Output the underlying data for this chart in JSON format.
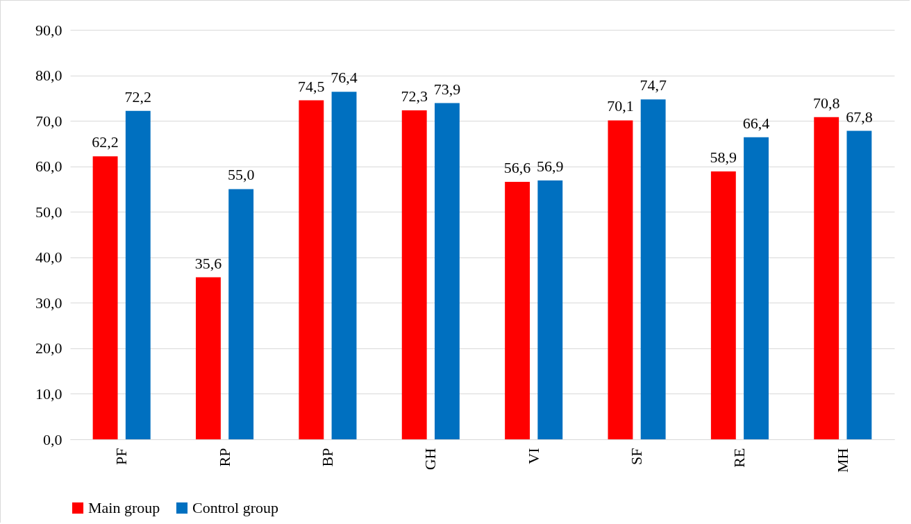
{
  "chart_data": {
    "type": "bar",
    "categories": [
      "PF",
      "RP",
      "BP",
      "GH",
      "VI",
      "SF",
      "RE",
      "MH"
    ],
    "series": [
      {
        "name": "Main group",
        "color": "#ff0000",
        "values": [
          62.2,
          35.6,
          74.5,
          72.3,
          56.6,
          70.1,
          58.9,
          70.8
        ],
        "value_labels": [
          "62,2",
          "35,6",
          "74,5",
          "72,3",
          "56,6",
          "70,1",
          "58,9",
          "70,8"
        ]
      },
      {
        "name": "Control group",
        "color": "#0070c0",
        "values": [
          72.2,
          55.0,
          76.4,
          73.9,
          56.9,
          74.7,
          66.4,
          67.8
        ],
        "value_labels": [
          "72,2",
          "55,0",
          "76,4",
          "73,9",
          "56,9",
          "74,7",
          "66,4",
          "67,8"
        ]
      }
    ],
    "ylim": [
      0,
      90
    ],
    "yticks": [
      {
        "value": 0,
        "label": "0,0"
      },
      {
        "value": 10,
        "label": "10,0"
      },
      {
        "value": 20,
        "label": "20,0"
      },
      {
        "value": 30,
        "label": "30,0"
      },
      {
        "value": 40,
        "label": "40,0"
      },
      {
        "value": 50,
        "label": "50,0"
      },
      {
        "value": 60,
        "label": "60,0"
      },
      {
        "value": 70,
        "label": "70,0"
      },
      {
        "value": 80,
        "label": "80,0"
      },
      {
        "value": 90,
        "label": "90,0"
      }
    ],
    "grid": "y",
    "legend": "bottom"
  }
}
